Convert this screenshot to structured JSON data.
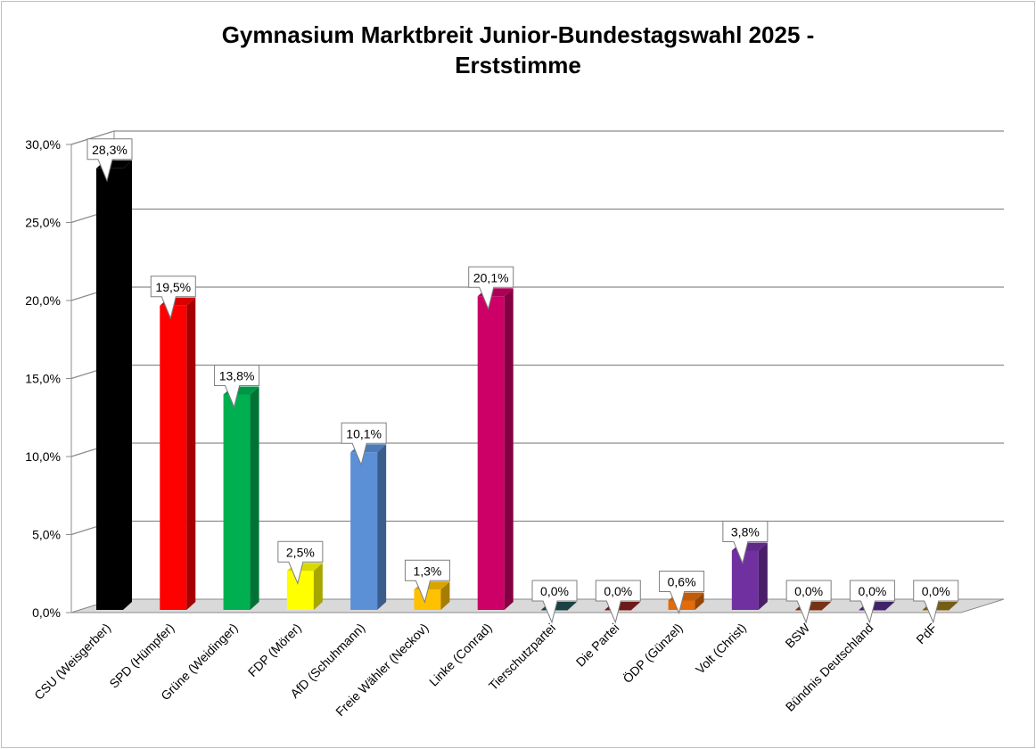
{
  "chart_data": {
    "type": "bar",
    "title_line1": "Gymnasium Marktbreit Junior-Bundestagswahl 2025 -",
    "title_line2": "Erststimme",
    "xlabel": "",
    "ylabel": "",
    "ylim": [
      0,
      30
    ],
    "ytick_labels": [
      "0,0%",
      "5,0%",
      "10,0%",
      "15,0%",
      "20,0%",
      "25,0%",
      "30,0%"
    ],
    "grid": true,
    "legend": "none",
    "categories": [
      "CSU (Weisgerber)",
      "SPD (Hümpfer)",
      "Grüne (Weidinger)",
      "FDP (Mörer)",
      "AfD (Schuhmann)",
      "Freie Wähler (Neckov)",
      "Linke (Conrad)",
      "Tierschutzpartei",
      "Die Partei",
      "ÖDP (Günzel)",
      "Volt (Christ)",
      "BSW",
      "Bündnis Deutschland",
      "PdF"
    ],
    "values": [
      28.3,
      19.5,
      13.8,
      2.5,
      10.1,
      1.3,
      20.1,
      0.0,
      0.0,
      0.6,
      3.8,
      0.0,
      0.0,
      0.0
    ],
    "value_labels": [
      "28,3%",
      "19,5%",
      "13,8%",
      "2,5%",
      "10,1%",
      "1,3%",
      "20,1%",
      "0,0%",
      "0,0%",
      "0,6%",
      "3,8%",
      "0,0%",
      "0,0%",
      "0,0%"
    ],
    "colors": [
      "#000000",
      "#ff0000",
      "#00b050",
      "#ffff00",
      "#5b8fd6",
      "#ffc000",
      "#cc0066",
      "#1f4e4e",
      "#7f1f1f",
      "#e26b0a",
      "#7030a0",
      "#8b3a1a",
      "#4b2a7a",
      "#8a6d1a"
    ]
  }
}
